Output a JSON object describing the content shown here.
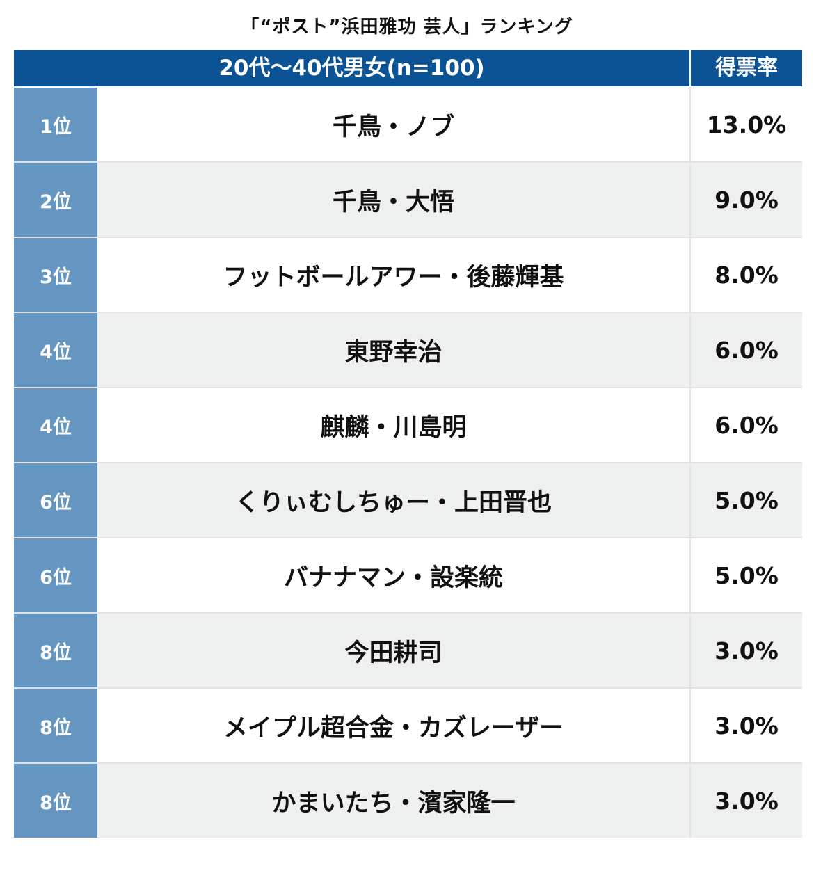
{
  "chart_data": {
    "type": "table",
    "title": "「“ポスト”浜田雅功 芸人」ランキング",
    "header": {
      "group_label": "20代〜40代男女(n=100)",
      "rate_label": "得票率"
    },
    "rows": [
      {
        "rank": "1位",
        "name": "千鳥・ノブ",
        "rate": "13.0%"
      },
      {
        "rank": "2位",
        "name": "千鳥・大悟",
        "rate": "9.0%"
      },
      {
        "rank": "3位",
        "name": "フットボールアワー・後藤輝基",
        "rate": "8.0%"
      },
      {
        "rank": "4位",
        "name": "東野幸治",
        "rate": "6.0%"
      },
      {
        "rank": "4位",
        "name": "麒麟・川島明",
        "rate": "6.0%"
      },
      {
        "rank": "6位",
        "name": "くりぃむしちゅー・上田晋也",
        "rate": "5.0%"
      },
      {
        "rank": "6位",
        "name": "バナナマン・設楽統",
        "rate": "5.0%"
      },
      {
        "rank": "8位",
        "name": "今田耕司",
        "rate": "3.0%"
      },
      {
        "rank": "8位",
        "name": "メイプル超合金・カズレーザー",
        "rate": "3.0%"
      },
      {
        "rank": "8位",
        "name": "かまいたち・濱家隆一",
        "rate": "3.0%"
      }
    ],
    "colors": {
      "header_bg": "#0b5394",
      "rank_bg": "#6496c1",
      "row_alt_bg": "#eef0f0",
      "row_bg": "#ffffff"
    }
  }
}
